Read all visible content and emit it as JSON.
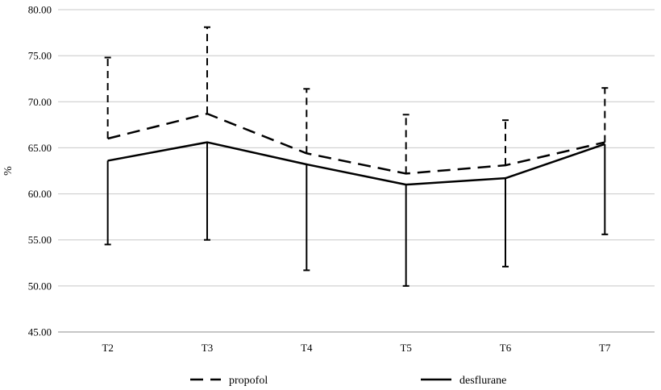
{
  "chart_data": {
    "type": "line",
    "title": "",
    "xlabel": "",
    "ylabel": "%",
    "categories": [
      "T2",
      "T3",
      "T4",
      "T5",
      "T6",
      "T7"
    ],
    "ylim": [
      45,
      80
    ],
    "yticks": [
      "45.00",
      "50.00",
      "55.00",
      "60.00",
      "65.00",
      "70.00",
      "75.00",
      "80.00"
    ],
    "grid": true,
    "legend_position": "bottom",
    "series": [
      {
        "name": "propofol",
        "style": "dashed",
        "color": "#000000",
        "values": [
          66.0,
          68.7,
          64.4,
          62.2,
          63.1,
          65.6
        ],
        "error_upper": [
          74.8,
          78.1,
          71.4,
          68.6,
          68.0,
          71.5
        ],
        "error_direction": "up"
      },
      {
        "name": "desflurane",
        "style": "solid",
        "color": "#000000",
        "values": [
          63.6,
          65.6,
          63.2,
          61.0,
          61.7,
          65.4
        ],
        "error_lower": [
          54.5,
          55.0,
          51.7,
          50.0,
          52.1,
          55.6
        ],
        "error_direction": "down"
      }
    ]
  }
}
